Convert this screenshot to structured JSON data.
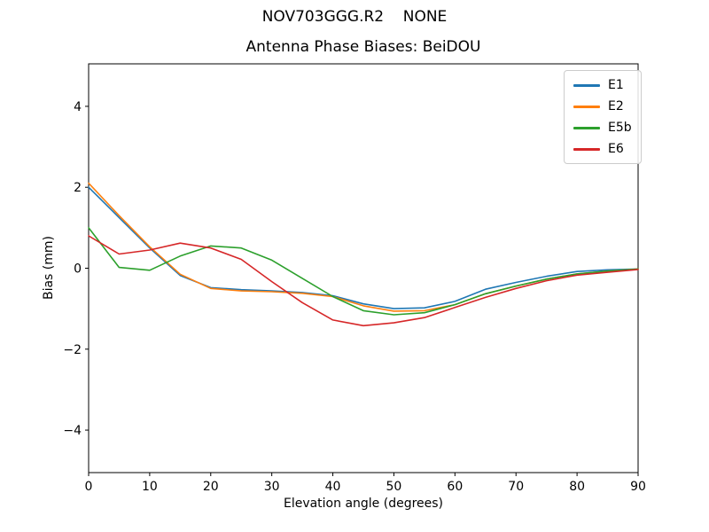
{
  "figure": {
    "suptitle": "NOV703GGG.R2    NONE",
    "title": "Antenna Phase Biases: BeiDOU"
  },
  "chart_data": {
    "type": "line",
    "title": "Antenna Phase Biases: BeiDOU",
    "xlabel": "Elevation angle (degrees)",
    "ylabel": "Bias (mm)",
    "xlim": [
      0,
      90
    ],
    "ylim": [
      -5.05,
      5.05
    ],
    "xticks": [
      0,
      10,
      20,
      30,
      40,
      50,
      60,
      70,
      80,
      90
    ],
    "yticks": [
      -4,
      -2,
      0,
      2,
      4
    ],
    "grid": false,
    "legend_position": "upper right",
    "x": [
      0,
      5,
      10,
      15,
      20,
      25,
      30,
      35,
      40,
      45,
      50,
      55,
      60,
      65,
      70,
      75,
      80,
      85,
      90
    ],
    "series": [
      {
        "name": "E1",
        "color": "#1f77b4",
        "values": [
          2.0,
          1.25,
          0.5,
          -0.18,
          -0.48,
          -0.53,
          -0.56,
          -0.6,
          -0.68,
          -0.88,
          -1.0,
          -0.98,
          -0.82,
          -0.52,
          -0.35,
          -0.2,
          -0.08,
          -0.04,
          -0.02
        ]
      },
      {
        "name": "E2",
        "color": "#ff7f0e",
        "values": [
          2.1,
          1.3,
          0.53,
          -0.15,
          -0.5,
          -0.56,
          -0.58,
          -0.62,
          -0.7,
          -0.93,
          -1.06,
          -1.05,
          -0.9,
          -0.63,
          -0.44,
          -0.27,
          -0.14,
          -0.07,
          -0.02
        ]
      },
      {
        "name": "E5b",
        "color": "#2ca02c",
        "values": [
          1.0,
          0.02,
          -0.05,
          0.3,
          0.55,
          0.5,
          0.2,
          -0.25,
          -0.7,
          -1.05,
          -1.15,
          -1.1,
          -0.9,
          -0.63,
          -0.44,
          -0.27,
          -0.14,
          -0.07,
          -0.02
        ]
      },
      {
        "name": "E6",
        "color": "#d62728",
        "values": [
          0.8,
          0.35,
          0.45,
          0.62,
          0.5,
          0.22,
          -0.33,
          -0.85,
          -1.28,
          -1.42,
          -1.35,
          -1.22,
          -0.97,
          -0.72,
          -0.5,
          -0.31,
          -0.17,
          -0.1,
          -0.03
        ]
      }
    ]
  }
}
